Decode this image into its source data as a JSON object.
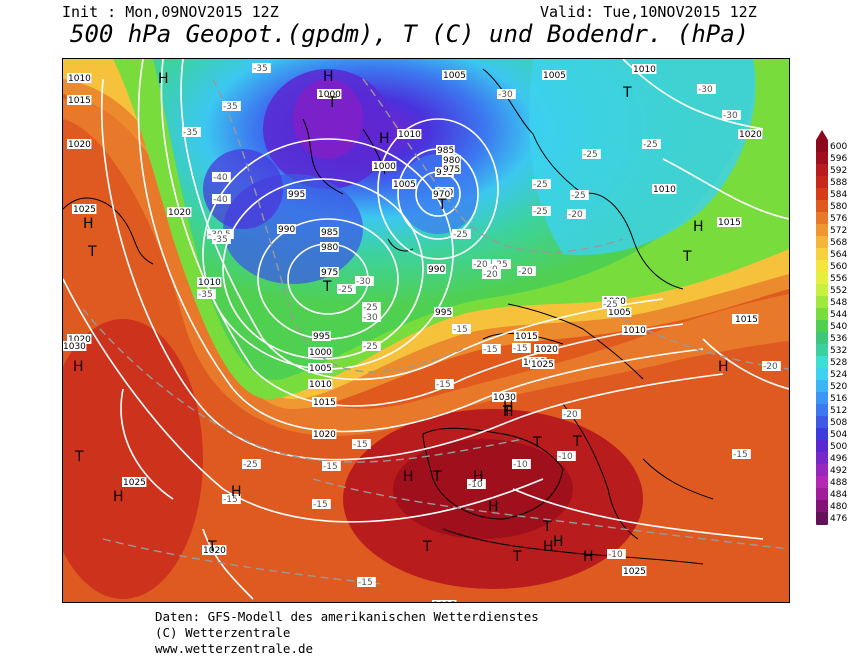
{
  "header": {
    "init": "Init : Mon,09NOV2015 12Z",
    "valid": "Valid: Tue,10NOV2015 12Z",
    "title": "500 hPa Geopot.(gpdm), T (C) und Bodendr. (hPa)"
  },
  "footer": {
    "line1": "Daten: GFS-Modell des amerikanischen Wetterdienstes",
    "line2": "(C) Wetterzentrale",
    "line3": "www.wetterzentrale.de"
  },
  "legend": {
    "values": [
      "600",
      "596",
      "592",
      "588",
      "584",
      "580",
      "576",
      "572",
      "568",
      "564",
      "560",
      "556",
      "552",
      "548",
      "544",
      "540",
      "536",
      "532",
      "528",
      "524",
      "520",
      "516",
      "512",
      "508",
      "504",
      "500",
      "496",
      "492",
      "488",
      "484",
      "480",
      "476"
    ],
    "colors": [
      "#8c0a1e",
      "#a0101c",
      "#b81c1c",
      "#c8281c",
      "#d63c18",
      "#e05a1e",
      "#e8782a",
      "#f09632",
      "#f5b43a",
      "#f8d23c",
      "#f4e63c",
      "#e6f03c",
      "#c8f03c",
      "#a0e83c",
      "#78dc3c",
      "#50d050",
      "#3cc878",
      "#3cd0a0",
      "#3ce0d2",
      "#3cd2f0",
      "#3cb4f5",
      "#3c96f5",
      "#3c78f0",
      "#3c5ae6",
      "#3c3cdc",
      "#5a28d2",
      "#7828c8",
      "#9628be",
      "#b428b4",
      "#a01e9b",
      "#821478",
      "#64105a"
    ]
  },
  "map": {
    "pressure_labels": [
      {
        "t": "1010"
      },
      {
        "t": "1015"
      },
      {
        "t": "1020"
      },
      {
        "t": "1025"
      },
      {
        "t": "1020"
      },
      {
        "t": "1010"
      },
      {
        "t": "1000"
      },
      {
        "t": "995"
      },
      {
        "t": "990"
      },
      {
        "t": "985"
      },
      {
        "t": "980"
      },
      {
        "t": "975"
      },
      {
        "t": "1005"
      },
      {
        "t": "1010"
      },
      {
        "t": "1005"
      },
      {
        "t": "1000"
      },
      {
        "t": "995"
      },
      {
        "t": "990"
      },
      {
        "t": "985"
      },
      {
        "t": "980"
      },
      {
        "t": "975"
      },
      {
        "t": "970"
      },
      {
        "t": "995"
      },
      {
        "t": "990"
      },
      {
        "t": "1005"
      },
      {
        "t": "1010"
      },
      {
        "t": "1020"
      },
      {
        "t": "1020"
      },
      {
        "t": "1010"
      },
      {
        "t": "1015"
      },
      {
        "t": "995"
      },
      {
        "t": "1000"
      },
      {
        "t": "1005"
      },
      {
        "t": "1010"
      },
      {
        "t": "1015"
      },
      {
        "t": "1020"
      },
      {
        "t": "1025"
      },
      {
        "t": "1030"
      },
      {
        "t": "1030"
      },
      {
        "t": "1015"
      },
      {
        "t": "1020"
      },
      {
        "t": "1025"
      },
      {
        "t": "1025"
      },
      {
        "t": "1020"
      },
      {
        "t": "1015"
      },
      {
        "t": "1025"
      },
      {
        "t": "1025"
      },
      {
        "t": "1000"
      },
      {
        "t": "1005"
      },
      {
        "t": "1010"
      },
      {
        "t": "1015"
      }
    ],
    "temp_labels": [
      {
        "t": "-35"
      },
      {
        "t": "-35"
      },
      {
        "t": "-35"
      },
      {
        "t": "-30"
      },
      {
        "t": "-30"
      },
      {
        "t": "-30"
      },
      {
        "t": "-25"
      },
      {
        "t": "-25"
      },
      {
        "t": "-25"
      },
      {
        "t": "-40"
      },
      {
        "t": "-40"
      },
      {
        "t": "-35"
      },
      {
        "t": "-30"
      },
      {
        "t": "-35"
      },
      {
        "t": "-35"
      },
      {
        "t": "-30"
      },
      {
        "t": "-30"
      },
      {
        "t": "-25"
      },
      {
        "t": "-25"
      },
      {
        "t": "-25"
      },
      {
        "t": "-20"
      },
      {
        "t": "-25"
      },
      {
        "t": "-25"
      },
      {
        "t": "-20"
      },
      {
        "t": "-15"
      },
      {
        "t": "-15"
      },
      {
        "t": "-15"
      },
      {
        "t": "-20"
      },
      {
        "t": "-20"
      },
      {
        "t": "-20"
      },
      {
        "t": "-25"
      },
      {
        "t": "-25"
      },
      {
        "t": "-20"
      },
      {
        "t": "-15"
      },
      {
        "t": "-15"
      },
      {
        "t": "-15"
      },
      {
        "t": "-10"
      },
      {
        "t": "-10"
      },
      {
        "t": "-10"
      },
      {
        "t": "-15"
      },
      {
        "t": "-15"
      },
      {
        "t": "-10"
      },
      {
        "t": "-25"
      },
      {
        "t": "-25"
      },
      {
        "t": "-20"
      },
      {
        "t": "-15"
      },
      {
        "t": "-15"
      }
    ],
    "centers": [
      {
        "t": "H"
      },
      {
        "t": "H"
      },
      {
        "t": "T"
      },
      {
        "t": "T"
      },
      {
        "t": "H"
      },
      {
        "t": "T"
      },
      {
        "t": "H"
      },
      {
        "t": "T"
      },
      {
        "t": "T"
      },
      {
        "t": "H"
      },
      {
        "t": "T"
      },
      {
        "t": "T"
      },
      {
        "t": "H"
      },
      {
        "t": "H"
      },
      {
        "t": "H"
      },
      {
        "t": "T"
      },
      {
        "t": "H"
      },
      {
        "t": "H"
      },
      {
        "t": "T"
      },
      {
        "t": "T"
      },
      {
        "t": "T"
      },
      {
        "t": "H"
      },
      {
        "t": "T"
      },
      {
        "t": "T"
      },
      {
        "t": "H"
      },
      {
        "t": "T"
      },
      {
        "t": "H"
      },
      {
        "t": "H"
      },
      {
        "t": "T"
      },
      {
        "t": "H"
      },
      {
        "t": "H"
      },
      {
        "t": "T"
      },
      {
        "t": "H"
      }
    ]
  }
}
